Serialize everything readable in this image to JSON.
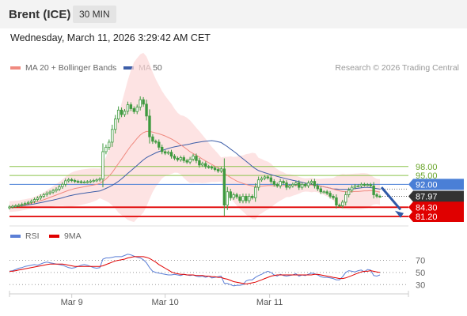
{
  "header": {
    "title": "Brent (ICE)",
    "timeframe": "30 MIN"
  },
  "datetime": "Wednesday, March 11, 2026 3:29:42 AM CET",
  "legend": {
    "ma20_label": "MA 20 + Bollinger Bands",
    "ma50_label": "MA 50",
    "credit": "Research © 2026 Trading Central",
    "rsi_label": "RSI",
    "ma9_label": "9MA"
  },
  "colors": {
    "ma20": "#f08a80",
    "bollinger_fill": "#fcd9d9",
    "ma50": "#3d5ea8",
    "candle": "#3f9a3f",
    "support": "#e00000",
    "resistance_current": "#4a7fd6",
    "target": "#8bc34a",
    "rsi": "#5b7fd6",
    "rsi_ma": "#e00000",
    "last_price": "#333333",
    "arrow": "#2f5aa8"
  },
  "chart_data": [
    {
      "type": "candlestick",
      "title": "Brent (ICE)",
      "timeframe": "30 MIN",
      "x_ticks": [
        "Mar 9",
        "Mar 10",
        "Mar 11"
      ],
      "ylim": [
        78,
        128
      ],
      "series": [
        {
          "name": "MA 20 + Bollinger Bands"
        },
        {
          "name": "MA 50"
        }
      ],
      "levels": [
        {
          "value": 98.0,
          "label": "98.00",
          "kind": "resistance"
        },
        {
          "value": 95.0,
          "label": "95.00",
          "kind": "resistance"
        },
        {
          "value": 92.0,
          "label": "92.00",
          "kind": "pivot"
        },
        {
          "value": 87.97,
          "label": "87.97",
          "kind": "last"
        },
        {
          "value": 84.3,
          "label": "84.30",
          "kind": "support"
        },
        {
          "value": 81.2,
          "label": "81.20",
          "kind": "support"
        }
      ],
      "close": [
        84.4,
        84.6,
        84.8,
        85.0,
        85.3,
        85.6,
        85.9,
        86.3,
        86.9,
        87.4,
        88.0,
        88.5,
        89.0,
        89.4,
        89.9,
        90.4,
        91.2,
        92.0,
        93.2,
        93.6,
        93.3,
        93.0,
        92.9,
        92.8,
        92.8,
        92.9,
        93.1,
        93.3,
        93.5,
        93.8,
        103.0,
        104.5,
        106.2,
        110.5,
        114.0,
        117.0,
        115.5,
        116.6,
        118.8,
        117.5,
        116.5,
        118.0,
        120.5,
        119.0,
        115.0,
        108.0,
        106.5,
        106.2,
        104.5,
        103.0,
        102.5,
        102.8,
        101.5,
        100.8,
        100.3,
        101.0,
        100.0,
        99.5,
        100.5,
        101.5,
        100.0,
        98.5,
        99.0,
        98.0,
        97.8,
        97.5,
        97.0,
        96.5,
        97.2,
        85.0,
        89.5,
        87.5,
        88.5,
        87.8,
        86.5,
        88.0,
        86.5,
        88.0,
        87.5,
        91.0,
        93.5,
        94.0,
        94.5,
        94.2,
        93.0,
        92.0,
        91.5,
        93.0,
        92.5,
        91.0,
        91.5,
        92.0,
        92.5,
        91.0,
        92.0,
        91.5,
        92.5,
        93.0,
        91.5,
        90.5,
        89.5,
        89.5,
        89.0,
        88.0,
        87.5,
        85.0,
        84.8,
        86.0,
        88.5,
        90.0,
        91.0,
        91.5,
        91.5,
        92.0,
        91.8,
        91.9,
        91.5,
        88.5,
        88.0,
        87.97
      ],
      "ma20": [
        84.5,
        84.6,
        84.7,
        84.8,
        85.0,
        85.2,
        85.4,
        85.6,
        85.9,
        86.2,
        86.5,
        86.8,
        87.2,
        87.6,
        88.0,
        88.4,
        88.8,
        89.2,
        89.6,
        90.0,
        90.3,
        90.6,
        90.8,
        91.0,
        91.2,
        91.4,
        91.6,
        91.8,
        92.0,
        92.3,
        93.0,
        93.8,
        94.8,
        96.0,
        97.5,
        99.0,
        100.5,
        102.0,
        103.5,
        105.0,
        106.2,
        107.5,
        108.6,
        109.4,
        109.8,
        109.8,
        109.6,
        109.3,
        109.0,
        108.7,
        108.3,
        107.8,
        107.3,
        106.7,
        106.0,
        105.3,
        104.6,
        103.8,
        103.0,
        102.4,
        101.8,
        101.2,
        100.5,
        99.9,
        99.3,
        98.7,
        98.1,
        97.6,
        97.0,
        95.8,
        95.0,
        94.3,
        93.7,
        93.1,
        92.7,
        92.3,
        92.0,
        91.7,
        91.5,
        91.3,
        91.3,
        91.4,
        91.5,
        91.6,
        91.6,
        91.5,
        91.5,
        91.5,
        91.6,
        91.6,
        91.6,
        91.7,
        91.7,
        91.7,
        91.8,
        91.8,
        91.8,
        91.8,
        91.7,
        91.6,
        91.4,
        91.2,
        91.0,
        90.7,
        90.4,
        90.1,
        89.8,
        89.6,
        89.5,
        89.5,
        89.5,
        89.6,
        89.6,
        89.7,
        89.8,
        89.8,
        89.9,
        89.8,
        89.6,
        89.4
      ]
    },
    {
      "type": "line",
      "title": "RSI",
      "series": [
        {
          "name": "RSI"
        },
        {
          "name": "9MA"
        }
      ],
      "ylim": [
        20,
        85
      ],
      "y_ticks": [
        70,
        50,
        30
      ],
      "rsi": [
        52,
        53,
        55,
        57,
        58,
        60,
        61,
        62,
        63,
        62,
        64,
        66,
        67,
        66,
        65,
        64,
        63,
        62,
        60,
        58,
        57,
        58,
        60,
        62,
        63,
        62,
        60,
        58,
        57,
        58,
        72,
        74,
        74,
        75,
        76,
        76,
        76,
        78,
        80,
        79,
        77,
        75,
        74,
        71,
        66,
        58,
        52,
        50,
        49,
        48,
        47,
        46,
        46,
        47,
        46,
        45,
        47,
        46,
        45,
        46,
        44,
        43,
        44,
        42,
        44,
        41,
        42,
        43,
        44,
        32,
        32,
        30,
        28,
        29,
        29,
        30,
        36,
        38,
        38,
        42,
        45,
        47,
        50,
        52,
        50,
        46,
        44,
        47,
        45,
        44,
        45,
        46,
        48,
        44,
        46,
        45,
        47,
        49,
        48,
        46,
        43,
        42,
        42,
        41,
        40,
        38,
        38,
        43,
        50,
        53,
        52,
        51,
        53,
        54,
        51,
        55,
        54,
        45,
        44,
        46
      ],
      "ma9": [
        52,
        52,
        53,
        54,
        55,
        56,
        57,
        58,
        59,
        60,
        61,
        62,
        63,
        64,
        64,
        64,
        64,
        64,
        63,
        62,
        61,
        60,
        60,
        60,
        60,
        60,
        60,
        60,
        60,
        60,
        61,
        63,
        65,
        67,
        69,
        70,
        71,
        72,
        74,
        75,
        76,
        76,
        76,
        76,
        75,
        73,
        70,
        67,
        63,
        60,
        57,
        54,
        51,
        49,
        48,
        47,
        47,
        46,
        46,
        46,
        45,
        45,
        45,
        44,
        44,
        43,
        43,
        42,
        42,
        40,
        39,
        37,
        35,
        34,
        33,
        32,
        31,
        32,
        33,
        34,
        36,
        38,
        40,
        42,
        44,
        45,
        46,
        46,
        46,
        46,
        46,
        46,
        46,
        46,
        46,
        46,
        46,
        46,
        47,
        47,
        46,
        45,
        44,
        43,
        42,
        41,
        40,
        40,
        41,
        43,
        45,
        47,
        49,
        51,
        52,
        52,
        53,
        52,
        51,
        50
      ]
    }
  ]
}
